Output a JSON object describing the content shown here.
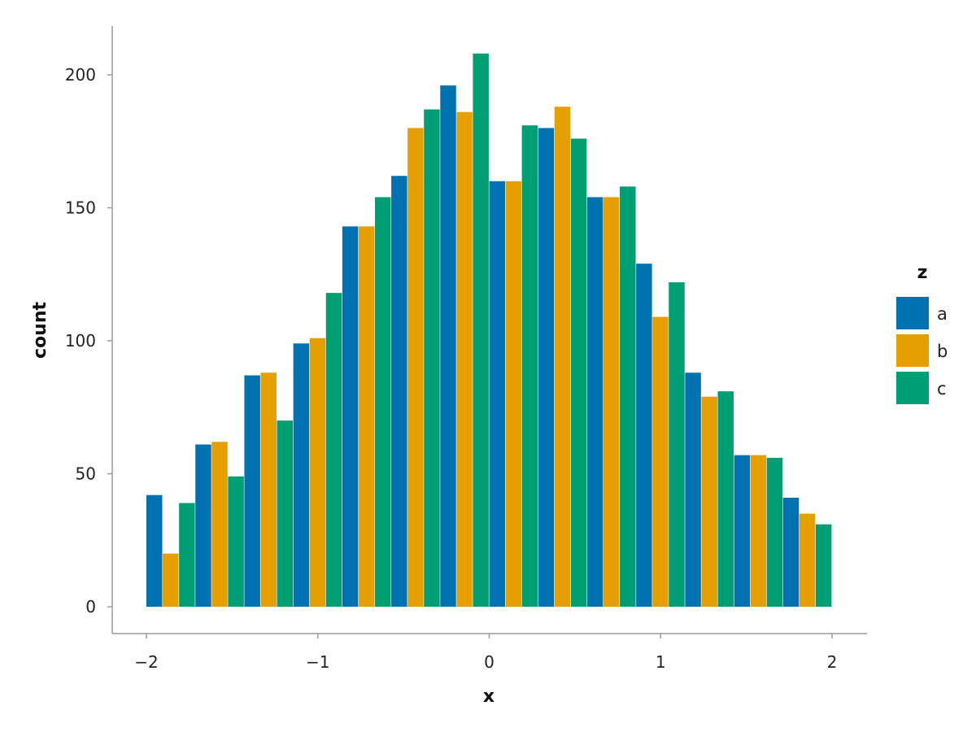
{
  "chart_data": {
    "type": "bar",
    "xlabel": "x",
    "ylabel": "count",
    "xlim": [
      -2.2,
      2.2
    ],
    "ylim": [
      -10,
      218
    ],
    "x_ticks": [
      -2,
      -1,
      0,
      1,
      2
    ],
    "x_tick_labels": [
      "−2",
      "−1",
      "0",
      "1",
      "2"
    ],
    "y_ticks": [
      0,
      50,
      100,
      150,
      200
    ],
    "y_tick_labels": [
      "0",
      "50",
      "100",
      "150",
      "200"
    ],
    "grid": false,
    "legend": {
      "title": "z",
      "placement": "right"
    },
    "bin_width": 0.2857,
    "bin_starts": [
      -2.0,
      -1.7143,
      -1.4286,
      -1.1429,
      -0.8571,
      -0.5714,
      -0.2857,
      0.0,
      0.2857,
      0.5714,
      0.8571,
      1.1429,
      1.4286,
      1.7143
    ],
    "series": [
      {
        "name": "a",
        "color": "#0072B2",
        "values": [
          42,
          61,
          87,
          99,
          143,
          162,
          196,
          160,
          180,
          154,
          129,
          88,
          57,
          41
        ]
      },
      {
        "name": "b",
        "color": "#E69F00",
        "values": [
          20,
          62,
          88,
          101,
          143,
          180,
          186,
          160,
          188,
          154,
          109,
          79,
          57,
          35
        ]
      },
      {
        "name": "c",
        "color": "#009E73",
        "values": [
          39,
          49,
          70,
          118,
          154,
          187,
          208,
          181,
          176,
          158,
          122,
          81,
          56,
          31
        ]
      }
    ]
  }
}
